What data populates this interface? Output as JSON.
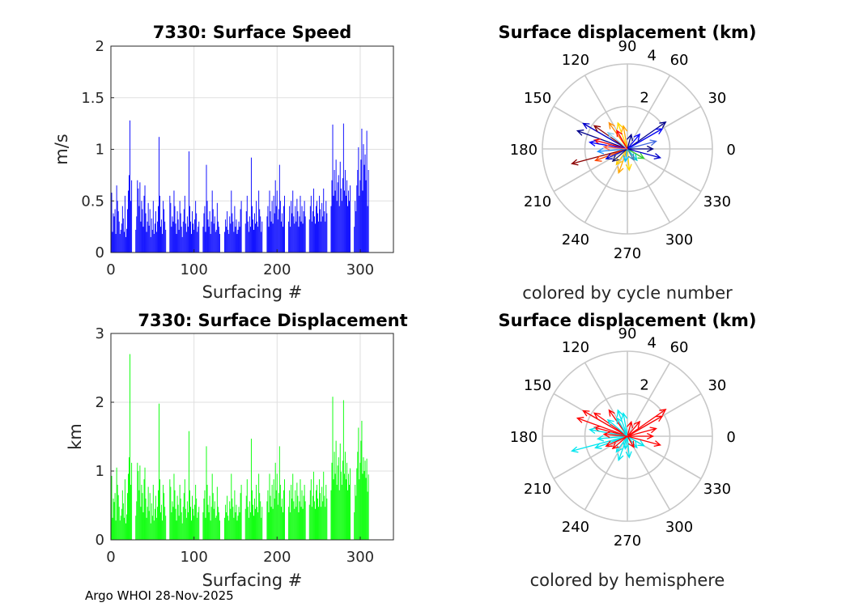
{
  "footer": "Argo WHOI 28-Nov-2025",
  "chart_data": [
    {
      "id": "speed",
      "type": "bar",
      "title": "7330: Surface Speed",
      "xlabel": "Surfacing #",
      "ylabel": "m/s",
      "xlim": [
        0,
        340
      ],
      "ylim": [
        0,
        2
      ],
      "xticks": [
        0,
        100,
        200,
        300
      ],
      "xtick_labels": [
        "0",
        "100",
        "200",
        "300"
      ],
      "yticks": [
        0,
        0.5,
        1,
        1.5,
        2
      ],
      "ytick_labels": [
        "0",
        "0.5",
        "1",
        "1.5",
        "2"
      ],
      "grid": true,
      "color": "#0000ff",
      "values": [
        0.58,
        0.2,
        0.38,
        0.35,
        0.42,
        0.18,
        0.65,
        0.5,
        0.4,
        0.3,
        0.18,
        0.22,
        0.28,
        0.45,
        0.33,
        0.2,
        0.55,
        0.15,
        0.23,
        0.42,
        0.6,
        0.75,
        1.28,
        0.5,
        0.7,
        0,
        0,
        0,
        0,
        0.22,
        0.35,
        0.7,
        0.62,
        0.45,
        0.68,
        0.3,
        0.5,
        0.42,
        0.25,
        0.55,
        0.65,
        0.38,
        0.2,
        0.3,
        0.48,
        0.26,
        0.42,
        0.15,
        0.33,
        0.22,
        0.5,
        0.18,
        0.28,
        0.4,
        0.2,
        0.3,
        0.45,
        1.12,
        0.55,
        0.25,
        0.32,
        0.18,
        0.5,
        0.42,
        0.3,
        0.22,
        0,
        0,
        0,
        0,
        0.55,
        0.48,
        0.25,
        0.35,
        0.3,
        0.6,
        0.45,
        0.28,
        0.18,
        0.4,
        0.32,
        0.22,
        0.5,
        0.38,
        0.25,
        0.15,
        0.3,
        0.42,
        0.55,
        0.28,
        0.2,
        0.35,
        0.25,
        0.98,
        0.45,
        0.3,
        0.18,
        0.4,
        0.28,
        0.22,
        0.32,
        0.5,
        0.38,
        0.2,
        0.25,
        0.3,
        0,
        0,
        0,
        0,
        0.25,
        0.38,
        0.45,
        0.2,
        0.85,
        0.5,
        0.32,
        0.25,
        0.4,
        0.18,
        0.3,
        0.6,
        0.42,
        0.28,
        0.35,
        0.2,
        0.22,
        0.48,
        0.3,
        0.25,
        0.18,
        0,
        0,
        0,
        0,
        0,
        0.2,
        0.32,
        0.25,
        0.4,
        0.22,
        0.18,
        0.35,
        0.28,
        0.6,
        0.38,
        0.3,
        0.2,
        0.45,
        0.25,
        0.32,
        0.18,
        0.22,
        0.3,
        0.25,
        0.42,
        0.5,
        0,
        0,
        0,
        0,
        0.28,
        0.4,
        0.55,
        0.3,
        0.2,
        0.35,
        0.25,
        0.92,
        0.45,
        0.32,
        0.22,
        0.38,
        0.28,
        0.5,
        0.3,
        0.25,
        0.6,
        0.42,
        0.35,
        0.2,
        0.3,
        0,
        0,
        0,
        0,
        0,
        0.35,
        0.45,
        0.25,
        0.6,
        0.4,
        0.3,
        0.5,
        0.28,
        0.55,
        0.38,
        0.7,
        0.45,
        0.6,
        0.32,
        0.42,
        0.85,
        0.5,
        0.3,
        0.38,
        0.25,
        0.45,
        0.55,
        0,
        0,
        0,
        0,
        0.3,
        0.45,
        0.25,
        0.5,
        0.38,
        0.6,
        0.35,
        0.28,
        0.45,
        0.3,
        0.52,
        0.4,
        0.25,
        0.35,
        0.55,
        0.3,
        0.45,
        0.28,
        0.4,
        0.5,
        0.35,
        0,
        0,
        0,
        0,
        0.32,
        0.45,
        0.55,
        0.3,
        0.4,
        0.62,
        0.35,
        0.28,
        0.45,
        0.5,
        0.38,
        0.3,
        0.55,
        0.42,
        0.3,
        0.48,
        0.35,
        0.62,
        0.4,
        0.3,
        0.5,
        0.38,
        0,
        0,
        0,
        0,
        0.45,
        0.7,
        1.24,
        0.55,
        0.8,
        0.6,
        0.9,
        0.5,
        0.68,
        0.75,
        0.45,
        0.88,
        0.62,
        0.5,
        0.72,
        1.25,
        0.6,
        0.8,
        0.55,
        0.7,
        0.45,
        0.6,
        0.5,
        0.65,
        0,
        0,
        0,
        0,
        0.25,
        0.5,
        0.4,
        0.65,
        0.8,
        1.02,
        0.55,
        0.7,
        0.9,
        1.2,
        0.6,
        1.05,
        0.85,
        0.95,
        0.7,
        1.18,
        0.45,
        0.8
      ]
    },
    {
      "id": "displacement",
      "type": "bar",
      "title": "7330: Surface Displacement",
      "xlabel": "Surfacing #",
      "ylabel": "km",
      "xlim": [
        0,
        340
      ],
      "ylim": [
        0,
        3
      ],
      "xticks": [
        0,
        100,
        200,
        300
      ],
      "xtick_labels": [
        "0",
        "100",
        "200",
        "300"
      ],
      "yticks": [
        0,
        1,
        2,
        3
      ],
      "ytick_labels": [
        "0",
        "1",
        "2",
        "3"
      ],
      "grid": true,
      "color": "#00ff00",
      "values": [
        0.93,
        0.32,
        0.6,
        0.55,
        0.68,
        0.28,
        1.05,
        0.8,
        0.65,
        0.48,
        0.28,
        0.35,
        0.45,
        0.72,
        0.53,
        0.32,
        0.88,
        0.24,
        0.37,
        0.68,
        0.96,
        1.2,
        2.7,
        0.8,
        1.12,
        0,
        0,
        0,
        0,
        0.35,
        0.56,
        1.12,
        1.0,
        0.72,
        1.08,
        0.48,
        0.8,
        0.68,
        0.4,
        0.88,
        1.05,
        0.6,
        0.32,
        0.48,
        0.77,
        0.42,
        0.68,
        0.24,
        0.53,
        0.35,
        0.8,
        0.28,
        0.45,
        0.64,
        0.32,
        0.48,
        0.72,
        1.98,
        0.88,
        0.4,
        0.51,
        0.28,
        0.8,
        0.68,
        0.48,
        0.35,
        0,
        0,
        0,
        0,
        0.88,
        0.77,
        0.4,
        0.56,
        0.48,
        0.96,
        0.72,
        0.45,
        0.28,
        0.64,
        0.51,
        0.35,
        0.8,
        0.6,
        0.4,
        0.24,
        0.48,
        0.68,
        0.88,
        0.45,
        0.32,
        0.56,
        0.4,
        1.58,
        0.72,
        0.48,
        0.28,
        0.64,
        0.45,
        0.35,
        0.51,
        0.8,
        0.6,
        0.32,
        0.4,
        0.48,
        0,
        0,
        0,
        0,
        0.4,
        0.6,
        0.72,
        0.32,
        1.36,
        0.8,
        0.51,
        0.4,
        0.64,
        0.28,
        0.48,
        0.96,
        0.68,
        0.45,
        0.56,
        0.32,
        0.35,
        0.77,
        0.48,
        0.4,
        0.28,
        0,
        0,
        0,
        0,
        0,
        0.32,
        0.51,
        0.4,
        0.64,
        0.35,
        0.28,
        0.56,
        0.45,
        0.96,
        0.6,
        0.48,
        0.32,
        0.72,
        0.4,
        0.51,
        0.28,
        0.35,
        0.48,
        0.4,
        0.68,
        0.8,
        0,
        0,
        0,
        0,
        0.45,
        0.64,
        0.88,
        0.48,
        0.32,
        0.56,
        0.4,
        1.47,
        0.72,
        0.51,
        0.35,
        0.6,
        0.45,
        0.8,
        0.48,
        0.4,
        0.96,
        0.68,
        0.56,
        0.32,
        0.48,
        0,
        0,
        0,
        0,
        0,
        0.56,
        0.72,
        0.4,
        0.96,
        0.64,
        0.48,
        0.8,
        0.45,
        0.88,
        0.6,
        1.12,
        0.72,
        0.96,
        0.51,
        0.68,
        1.36,
        0.8,
        0.48,
        0.6,
        0.4,
        0.72,
        0.88,
        0,
        0,
        0,
        0,
        0.48,
        0.72,
        0.4,
        0.8,
        0.6,
        0.96,
        0.56,
        0.45,
        0.72,
        0.48,
        0.83,
        0.64,
        0.4,
        0.56,
        0.88,
        0.48,
        0.72,
        0.45,
        0.64,
        0.8,
        0.56,
        0,
        0,
        0,
        0,
        0.51,
        0.72,
        0.88,
        0.48,
        0.64,
        0.99,
        0.56,
        0.45,
        0.72,
        0.8,
        0.6,
        0.48,
        0.88,
        0.68,
        0.48,
        0.77,
        0.56,
        0.99,
        0.64,
        0.48,
        0.8,
        0.6,
        0,
        0,
        0,
        0,
        0.72,
        1.12,
        2.08,
        0.88,
        1.28,
        0.96,
        1.44,
        0.8,
        1.08,
        1.2,
        0.72,
        1.4,
        0.99,
        0.8,
        1.15,
        2.03,
        0.96,
        1.28,
        0.88,
        1.12,
        0.72,
        0.96,
        0.8,
        1.04,
        0,
        0,
        0,
        0,
        0.4,
        0.8,
        0.64,
        1.04,
        1.28,
        1.63,
        0.88,
        1.12,
        1.44,
        1.73,
        0.96,
        1.2,
        1.0,
        1.15,
        0.9,
        1.18,
        0.7,
        0.95
      ]
    },
    {
      "id": "polar-cycle",
      "type": "polar",
      "title": "Surface displacement (km)",
      "xlabel": "colored by cycle number",
      "rlim": [
        0,
        4
      ],
      "rticks": [
        2,
        4
      ],
      "rtick_labels": [
        "2",
        "4"
      ],
      "theta_ticks": [
        0,
        30,
        60,
        90,
        120,
        150,
        180,
        210,
        240,
        270,
        300,
        330
      ],
      "theta_tick_labels": [
        "0",
        "30",
        "60",
        "90",
        "120",
        "150",
        "180",
        "210",
        "240",
        "270",
        "300",
        "330"
      ],
      "grid": true,
      "vectors": [
        {
          "angle": 160,
          "r": 2.5,
          "color": "#00008b"
        },
        {
          "angle": 150,
          "r": 2.4,
          "color": "#0000cd"
        },
        {
          "angle": 35,
          "r": 2.2,
          "color": "#00008b"
        },
        {
          "angle": 30,
          "r": 1.9,
          "color": "#0000ff"
        },
        {
          "angle": 195,
          "r": 2.7,
          "color": "#8b0000"
        },
        {
          "angle": 200,
          "r": 1.6,
          "color": "#ff4500"
        },
        {
          "angle": 145,
          "r": 1.9,
          "color": "#8b0000"
        },
        {
          "angle": 165,
          "r": 1.6,
          "color": "#ff0000"
        },
        {
          "angle": 125,
          "r": 1.5,
          "color": "#ff8c00"
        },
        {
          "angle": 100,
          "r": 1.1,
          "color": "#ffa500"
        },
        {
          "angle": 110,
          "r": 1.3,
          "color": "#ffd700"
        },
        {
          "angle": 250,
          "r": 1.2,
          "color": "#ffa500"
        },
        {
          "angle": 275,
          "r": 1.0,
          "color": "#ffd700"
        },
        {
          "angle": 235,
          "r": 0.9,
          "color": "#ffcc00"
        },
        {
          "angle": 330,
          "r": 0.9,
          "color": "#32cd32"
        },
        {
          "angle": 310,
          "r": 0.7,
          "color": "#00ced1"
        },
        {
          "angle": 260,
          "r": 0.6,
          "color": "#00bfff"
        },
        {
          "angle": 15,
          "r": 1.4,
          "color": "#4169e1"
        },
        {
          "angle": 345,
          "r": 1.6,
          "color": "#0000cd"
        },
        {
          "angle": 0,
          "r": 1.2,
          "color": "#000080"
        },
        {
          "angle": 170,
          "r": 1.8,
          "color": "#0000ff"
        },
        {
          "angle": 185,
          "r": 1.4,
          "color": "#1e90ff"
        },
        {
          "angle": 140,
          "r": 1.2,
          "color": "#87ceeb"
        },
        {
          "angle": 50,
          "r": 0.9,
          "color": "#0000ff"
        },
        {
          "angle": 75,
          "r": 0.7,
          "color": "#00008b"
        },
        {
          "angle": 205,
          "r": 1.1,
          "color": "#0000cd"
        },
        {
          "angle": 220,
          "r": 0.9,
          "color": "#191970"
        },
        {
          "angle": 300,
          "r": 0.6,
          "color": "#4682b4"
        },
        {
          "angle": 120,
          "r": 1.0,
          "color": "#ff0000"
        },
        {
          "angle": 175,
          "r": 1.1,
          "color": "#ff6347"
        }
      ]
    },
    {
      "id": "polar-hemisphere",
      "type": "polar",
      "title": "Surface displacement (km)",
      "xlabel": "colored by hemisphere",
      "rlim": [
        0,
        4
      ],
      "rticks": [
        2,
        4
      ],
      "rtick_labels": [
        "2",
        "4"
      ],
      "theta_ticks": [
        0,
        30,
        60,
        90,
        120,
        150,
        180,
        210,
        240,
        270,
        300,
        330
      ],
      "theta_tick_labels": [
        "0",
        "30",
        "60",
        "90",
        "120",
        "150",
        "180",
        "210",
        "240",
        "270",
        "300",
        "330"
      ],
      "grid": true,
      "vectors": [
        {
          "angle": 160,
          "r": 2.5,
          "color": "#ff0000"
        },
        {
          "angle": 150,
          "r": 2.4,
          "color": "#ff0000"
        },
        {
          "angle": 35,
          "r": 2.2,
          "color": "#ff0000"
        },
        {
          "angle": 30,
          "r": 1.9,
          "color": "#ff0000"
        },
        {
          "angle": 195,
          "r": 2.7,
          "color": "#00e5ee"
        },
        {
          "angle": 200,
          "r": 1.6,
          "color": "#00e5ee"
        },
        {
          "angle": 145,
          "r": 1.9,
          "color": "#ff0000"
        },
        {
          "angle": 165,
          "r": 1.6,
          "color": "#ff0000"
        },
        {
          "angle": 125,
          "r": 1.5,
          "color": "#ff0000"
        },
        {
          "angle": 100,
          "r": 1.1,
          "color": "#00e5ee"
        },
        {
          "angle": 110,
          "r": 1.3,
          "color": "#00e5ee"
        },
        {
          "angle": 250,
          "r": 1.2,
          "color": "#00e5ee"
        },
        {
          "angle": 275,
          "r": 1.0,
          "color": "#00e5ee"
        },
        {
          "angle": 235,
          "r": 0.9,
          "color": "#00e5ee"
        },
        {
          "angle": 330,
          "r": 0.9,
          "color": "#00e5ee"
        },
        {
          "angle": 310,
          "r": 0.7,
          "color": "#00e5ee"
        },
        {
          "angle": 260,
          "r": 0.6,
          "color": "#00e5ee"
        },
        {
          "angle": 15,
          "r": 1.4,
          "color": "#ff0000"
        },
        {
          "angle": 345,
          "r": 1.6,
          "color": "#ff0000"
        },
        {
          "angle": 0,
          "r": 1.2,
          "color": "#ff0000"
        },
        {
          "angle": 170,
          "r": 1.8,
          "color": "#00e5ee"
        },
        {
          "angle": 185,
          "r": 1.4,
          "color": "#00e5ee"
        },
        {
          "angle": 140,
          "r": 1.2,
          "color": "#00e5ee"
        },
        {
          "angle": 50,
          "r": 0.9,
          "color": "#ff0000"
        },
        {
          "angle": 75,
          "r": 0.7,
          "color": "#ff0000"
        },
        {
          "angle": 205,
          "r": 1.1,
          "color": "#ff0000"
        },
        {
          "angle": 220,
          "r": 0.9,
          "color": "#ff0000"
        },
        {
          "angle": 300,
          "r": 0.6,
          "color": "#ff0000"
        },
        {
          "angle": 120,
          "r": 1.0,
          "color": "#00e5ee"
        },
        {
          "angle": 175,
          "r": 1.1,
          "color": "#ff0000"
        }
      ]
    }
  ]
}
